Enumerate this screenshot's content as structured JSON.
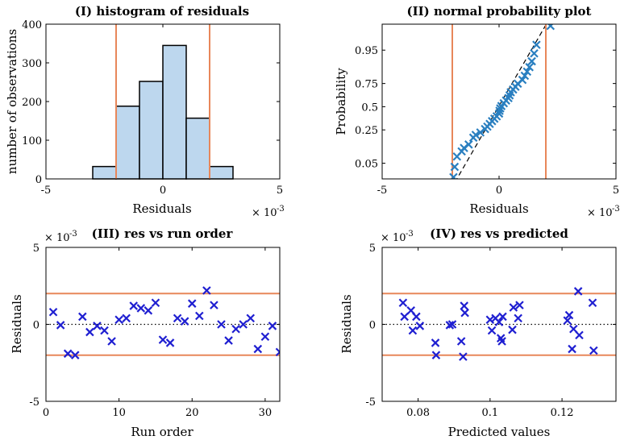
{
  "chart_data": [
    {
      "id": "hist",
      "type": "bar",
      "title": "(I) histogram of residuals",
      "xlabel": "Residuals",
      "ylabel": "number of observations",
      "x_exponent": "× 10^-3",
      "xlim": [
        -5,
        5
      ],
      "ylim": [
        0,
        400
      ],
      "xticks": [
        "-5",
        "0",
        "5"
      ],
      "yticks": [
        "0",
        "100",
        "200",
        "300",
        "400"
      ],
      "bins": [
        {
          "x0": -3,
          "x1": -2,
          "value": 32
        },
        {
          "x0": -2,
          "x1": -1,
          "value": 188
        },
        {
          "x0": -1,
          "x1": 0,
          "value": 252
        },
        {
          "x0": 0,
          "x1": 1,
          "value": 345
        },
        {
          "x0": 1,
          "x1": 2,
          "value": 157
        },
        {
          "x0": 2,
          "x1": 3,
          "value": 32
        }
      ],
      "limit_lines": [
        -2,
        2
      ],
      "bar_color": "#bdd7ee",
      "limit_color": "#e8875a"
    },
    {
      "id": "npp",
      "type": "scatter",
      "title": "(II) normal probability plot",
      "xlabel": "Residuals",
      "ylabel": "Probability",
      "x_exponent": "× 10^-3",
      "xlim": [
        -5,
        5
      ],
      "xticks": [
        "-5",
        "0",
        "5"
      ],
      "yticks": [
        "0.05",
        "0.25",
        "0.5",
        "0.75",
        "0.95"
      ],
      "ytick_values": [
        0.05,
        0.25,
        0.5,
        0.75,
        0.95
      ],
      "z_range": [
        -2.1,
        2.4
      ],
      "limit_lines": [
        -2,
        2
      ],
      "fit_line": {
        "slope_mu": 0.85,
        "intercept_mu": -0.02
      },
      "points": [
        {
          "x": -1.95,
          "z": -2.05
        },
        {
          "x": -1.9,
          "z": -1.75
        },
        {
          "x": -1.8,
          "z": -1.45
        },
        {
          "x": -1.6,
          "z": -1.3
        },
        {
          "x": -1.5,
          "z": -1.2
        },
        {
          "x": -1.3,
          "z": -1.1
        },
        {
          "x": -1.1,
          "z": -0.9
        },
        {
          "x": -1.0,
          "z": -0.82
        },
        {
          "x": -0.8,
          "z": -0.75
        },
        {
          "x": -0.6,
          "z": -0.65
        },
        {
          "x": -0.5,
          "z": -0.58
        },
        {
          "x": -0.4,
          "z": -0.5
        },
        {
          "x": -0.3,
          "z": -0.42
        },
        {
          "x": -0.2,
          "z": -0.35
        },
        {
          "x": -0.1,
          "z": -0.28
        },
        {
          "x": 0.0,
          "z": -0.2
        },
        {
          "x": 0.02,
          "z": -0.12
        },
        {
          "x": 0.05,
          "z": -0.05
        },
        {
          "x": 0.1,
          "z": 0.02
        },
        {
          "x": 0.2,
          "z": 0.1
        },
        {
          "x": 0.3,
          "z": 0.18
        },
        {
          "x": 0.4,
          "z": 0.25
        },
        {
          "x": 0.45,
          "z": 0.33
        },
        {
          "x": 0.5,
          "z": 0.42
        },
        {
          "x": 0.6,
          "z": 0.5
        },
        {
          "x": 0.7,
          "z": 0.58
        },
        {
          "x": 0.8,
          "z": 0.67
        },
        {
          "x": 1.0,
          "z": 0.78
        },
        {
          "x": 1.1,
          "z": 0.9
        },
        {
          "x": 1.2,
          "z": 1.02
        },
        {
          "x": 1.3,
          "z": 1.15
        },
        {
          "x": 1.4,
          "z": 1.32
        },
        {
          "x": 1.5,
          "z": 1.55
        },
        {
          "x": 1.6,
          "z": 1.8
        },
        {
          "x": 2.2,
          "z": 2.35
        }
      ],
      "marker_color": "#2a7fc0",
      "limit_color": "#e8875a"
    },
    {
      "id": "runorder",
      "type": "scatter",
      "title": "(III) res vs run order",
      "xlabel": "Run order",
      "ylabel": "Residuals",
      "y_exponent": "× 10^-3",
      "xlim": [
        0,
        32
      ],
      "ylim": [
        -5,
        5
      ],
      "xticks": [
        "0",
        "10",
        "20",
        "30"
      ],
      "yticks": [
        "-5",
        "0",
        "5"
      ],
      "limit_lines": [
        -2,
        2
      ],
      "points": [
        {
          "x": 1,
          "y": 0.8
        },
        {
          "x": 2,
          "y": -0.05
        },
        {
          "x": 3,
          "y": -1.9
        },
        {
          "x": 4,
          "y": -2.0
        },
        {
          "x": 5,
          "y": 0.5
        },
        {
          "x": 6,
          "y": -0.5
        },
        {
          "x": 7,
          "y": -0.1
        },
        {
          "x": 8,
          "y": -0.4
        },
        {
          "x": 9,
          "y": -1.1
        },
        {
          "x": 10,
          "y": 0.3
        },
        {
          "x": 11,
          "y": 0.4
        },
        {
          "x": 12,
          "y": 1.2
        },
        {
          "x": 13,
          "y": 1.05
        },
        {
          "x": 14,
          "y": 0.9
        },
        {
          "x": 15,
          "y": 1.4
        },
        {
          "x": 16,
          "y": -1.0
        },
        {
          "x": 17,
          "y": -1.2
        },
        {
          "x": 18,
          "y": 0.4
        },
        {
          "x": 19,
          "y": 0.2
        },
        {
          "x": 20,
          "y": 1.35
        },
        {
          "x": 21,
          "y": 0.55
        },
        {
          "x": 22,
          "y": 2.2
        },
        {
          "x": 23,
          "y": 1.25
        },
        {
          "x": 24,
          "y": 0.0
        },
        {
          "x": 25,
          "y": -1.05
        },
        {
          "x": 26,
          "y": -0.3
        },
        {
          "x": 27,
          "y": 0.0
        },
        {
          "x": 28,
          "y": 0.4
        },
        {
          "x": 29,
          "y": -1.6
        },
        {
          "x": 30,
          "y": -0.8
        },
        {
          "x": 31,
          "y": -0.1
        },
        {
          "x": 32,
          "y": -1.8
        }
      ],
      "marker_color": "#1f1fd1",
      "limit_color": "#e8875a"
    },
    {
      "id": "predicted",
      "type": "scatter",
      "title": "(IV) res vs predicted",
      "xlabel": "Predicted values",
      "ylabel": "Residuals",
      "y_exponent": "× 10^-3",
      "xlim": [
        0.07,
        0.135
      ],
      "ylim": [
        -5,
        5
      ],
      "xticks": [
        "0.08",
        "0.1",
        "0.12"
      ],
      "xtick_values": [
        0.08,
        0.1,
        0.12
      ],
      "yticks": [
        "-5",
        "0",
        "5"
      ],
      "limit_lines": [
        -2,
        2
      ],
      "points": [
        {
          "x": 0.0758,
          "y": 1.4
        },
        {
          "x": 0.0762,
          "y": 0.5
        },
        {
          "x": 0.078,
          "y": 0.9
        },
        {
          "x": 0.0785,
          "y": -0.4
        },
        {
          "x": 0.0795,
          "y": 0.5
        },
        {
          "x": 0.0805,
          "y": -0.1
        },
        {
          "x": 0.0848,
          "y": -1.2
        },
        {
          "x": 0.085,
          "y": -2.0
        },
        {
          "x": 0.0888,
          "y": -0.05
        },
        {
          "x": 0.0895,
          "y": 0.0
        },
        {
          "x": 0.092,
          "y": -1.1
        },
        {
          "x": 0.0925,
          "y": -2.1
        },
        {
          "x": 0.0928,
          "y": 1.2
        },
        {
          "x": 0.093,
          "y": 0.75
        },
        {
          "x": 0.1,
          "y": 0.3
        },
        {
          "x": 0.1005,
          "y": -0.4
        },
        {
          "x": 0.1015,
          "y": 0.4
        },
        {
          "x": 0.1025,
          "y": 0.15
        },
        {
          "x": 0.103,
          "y": -0.9
        },
        {
          "x": 0.1033,
          "y": -1.1
        },
        {
          "x": 0.1035,
          "y": 0.5
        },
        {
          "x": 0.1062,
          "y": -0.35
        },
        {
          "x": 0.1065,
          "y": 1.1
        },
        {
          "x": 0.1078,
          "y": 0.4
        },
        {
          "x": 0.1082,
          "y": 1.25
        },
        {
          "x": 0.1215,
          "y": 0.25
        },
        {
          "x": 0.122,
          "y": 0.6
        },
        {
          "x": 0.1228,
          "y": -1.6
        },
        {
          "x": 0.1232,
          "y": -0.3
        },
        {
          "x": 0.1245,
          "y": 2.15
        },
        {
          "x": 0.1248,
          "y": -0.7
        },
        {
          "x": 0.1285,
          "y": 1.4
        },
        {
          "x": 0.1288,
          "y": -1.7
        }
      ],
      "marker_color": "#1f1fd1",
      "limit_color": "#e8875a"
    }
  ]
}
